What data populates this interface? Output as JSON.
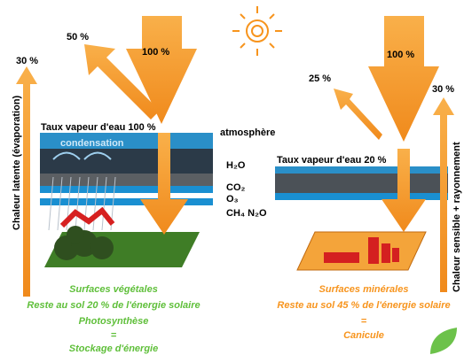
{
  "left": {
    "arrow_in": "100 %",
    "arrow_reflect": "50 %",
    "arrow_latent": "30 %",
    "latent_label": "Chaleur latente (évaporation)",
    "vapour": "Taux vapeur d'eau 100 %",
    "condensation": "condensation",
    "caption": [
      "Surfaces végétales",
      "Reste au sol 20 % de l'énergie solaire",
      "Photosynthèse",
      "=",
      "Stockage d'énergie"
    ]
  },
  "center": {
    "atmosphere": "atmosphère",
    "gases": [
      "H₂O",
      "CO₂",
      "O₃",
      "CH₄ N₂O"
    ]
  },
  "right": {
    "arrow_in": "100 %",
    "arrow_reflect": "25 %",
    "arrow_sensible": "30 %",
    "sensible_label": "Chaleur sensible + rayonnement",
    "vapour": "Taux vapeur d'eau 20 %",
    "caption": [
      "Surfaces minérales",
      "Reste au sol 45 % de l'énergie solaire",
      "=",
      "Canicule"
    ]
  }
}
